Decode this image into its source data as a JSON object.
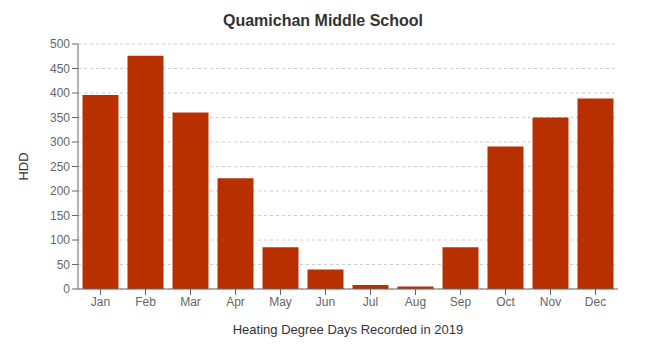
{
  "chart_data": {
    "type": "bar",
    "title": "Quamichan Middle School",
    "xlabel": "Heating Degree Days Recorded in 2019",
    "ylabel": "HDD",
    "categories": [
      "Jan",
      "Feb",
      "Mar",
      "Apr",
      "May",
      "Jun",
      "Jul",
      "Aug",
      "Sep",
      "Oct",
      "Nov",
      "Dec"
    ],
    "values": [
      396,
      476,
      360,
      226,
      85,
      40,
      8,
      5,
      85,
      291,
      350,
      389
    ],
    "color": "#b83000",
    "ylim": [
      0,
      500
    ],
    "yticks": [
      0,
      50,
      100,
      150,
      200,
      250,
      300,
      350,
      400,
      450,
      500
    ],
    "grid": true
  }
}
